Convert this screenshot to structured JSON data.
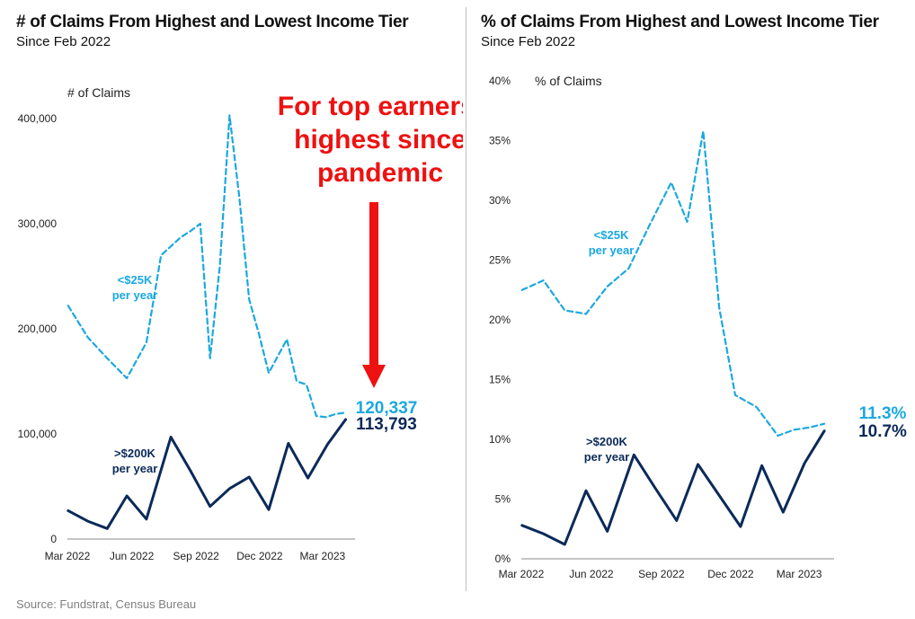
{
  "source": "Source: Fundstrat, Census Bureau",
  "chart_data": [
    {
      "type": "line",
      "title": "# of Claims From Highest and Lowest Income Tier",
      "subtitle": "Since Feb 2022",
      "ylabel": "# of Claims",
      "ylim": [
        0,
        400000
      ],
      "yticks": [
        0,
        100000,
        200000,
        300000,
        400000
      ],
      "ytick_labels": [
        "0",
        "100,000",
        "200,000",
        "300,000",
        "400,000"
      ],
      "xlim": [
        "2022-03-01",
        "2023-04-10"
      ],
      "xticks": [
        "2022-03-01",
        "2022-06-01",
        "2022-09-01",
        "2022-12-01",
        "2023-03-01"
      ],
      "xtick_labels": [
        "Mar 2022",
        "Jun 2022",
        "Sep 2022",
        "Dec 2022",
        "Mar 2023"
      ],
      "grid": false,
      "series": [
        {
          "name": "<$25K per year",
          "label_lines": [
            "<$25K",
            "per year"
          ],
          "color": "#1ba8e0",
          "dash": true,
          "end_label": "120,337",
          "x": [
            "2022-03-02",
            "2022-03-30",
            "2022-04-27",
            "2022-05-25",
            "2022-06-22",
            "2022-07-13",
            "2022-08-10",
            "2022-08-24",
            "2022-09-07",
            "2022-09-21",
            "2022-10-05",
            "2022-10-19",
            "2022-11-02",
            "2022-11-16",
            "2022-11-30",
            "2022-12-14",
            "2023-01-09",
            "2023-01-23",
            "2023-02-06",
            "2023-02-20",
            "2023-03-06",
            "2023-03-20",
            "2023-04-03"
          ],
          "values": [
            222000,
            192000,
            172000,
            153000,
            187000,
            270000,
            287000,
            293000,
            300000,
            172000,
            260000,
            403000,
            325000,
            228000,
            195000,
            158000,
            190000,
            150000,
            147000,
            117000,
            116000,
            119000,
            120337
          ]
        },
        {
          "name": ">$200K per year",
          "label_lines": [
            ">$200K",
            "per year"
          ],
          "color": "#0b2a5a",
          "dash": false,
          "end_label": "113,793",
          "x": [
            "2022-03-02",
            "2022-03-30",
            "2022-04-27",
            "2022-05-25",
            "2022-06-22",
            "2022-07-27",
            "2022-08-24",
            "2022-09-21",
            "2022-10-19",
            "2022-11-16",
            "2022-12-14",
            "2023-01-11",
            "2023-02-08",
            "2023-03-08",
            "2023-04-03"
          ],
          "values": [
            27000,
            17000,
            10000,
            41000,
            19000,
            97000,
            65000,
            31000,
            48000,
            59000,
            28000,
            91000,
            58000,
            90000,
            113793
          ]
        }
      ],
      "annotation": [
        "For top earners,",
        "highest since",
        "pandemic"
      ]
    },
    {
      "type": "line",
      "title": "% of Claims From Highest and Lowest Income Tier",
      "subtitle": "Since Feb 2022",
      "ylabel": "% of Claims",
      "ylim": [
        0,
        40
      ],
      "yticks": [
        0,
        5,
        10,
        15,
        20,
        25,
        30,
        35,
        40
      ],
      "ytick_labels": [
        "0%",
        "5%",
        "10%",
        "15%",
        "20%",
        "25%",
        "30%",
        "35%",
        "40%"
      ],
      "xlim": [
        "2022-03-01",
        "2023-04-10"
      ],
      "xticks": [
        "2022-03-01",
        "2022-06-01",
        "2022-09-01",
        "2022-12-01",
        "2023-03-01"
      ],
      "xtick_labels": [
        "Mar 2022",
        "Jun 2022",
        "Sep 2022",
        "Dec 2022",
        "Mar 2023"
      ],
      "grid": false,
      "series": [
        {
          "name": "<$25K per year",
          "label_lines": [
            "<$25K",
            "per year"
          ],
          "color": "#1ba8e0",
          "dash": true,
          "end_label": "11.3%",
          "x": [
            "2022-03-02",
            "2022-03-30",
            "2022-04-27",
            "2022-05-25",
            "2022-06-22",
            "2022-07-20",
            "2022-08-17",
            "2022-09-14",
            "2022-10-05",
            "2022-10-26",
            "2022-11-16",
            "2022-12-07",
            "2023-01-04",
            "2023-02-01",
            "2023-02-22",
            "2023-03-15",
            "2023-04-03"
          ],
          "values": [
            22.5,
            23.3,
            20.8,
            20.5,
            22.8,
            24.3,
            28.0,
            31.5,
            28.2,
            35.8,
            21.0,
            13.7,
            12.7,
            10.3,
            10.8,
            11.0,
            11.3
          ]
        },
        {
          "name": ">$200K per year",
          "label_lines": [
            ">$200K",
            "per year"
          ],
          "color": "#0b2a5a",
          "dash": false,
          "end_label": "10.7%",
          "x": [
            "2022-03-02",
            "2022-03-30",
            "2022-04-27",
            "2022-05-25",
            "2022-06-22",
            "2022-07-27",
            "2022-08-24",
            "2022-09-21",
            "2022-10-19",
            "2022-11-16",
            "2022-12-14",
            "2023-01-11",
            "2023-02-08",
            "2023-03-08",
            "2023-04-03"
          ],
          "values": [
            2.8,
            2.1,
            1.2,
            5.7,
            2.3,
            8.7,
            5.9,
            3.2,
            7.9,
            5.3,
            2.7,
            7.8,
            3.9,
            8.0,
            10.7
          ]
        }
      ]
    }
  ]
}
